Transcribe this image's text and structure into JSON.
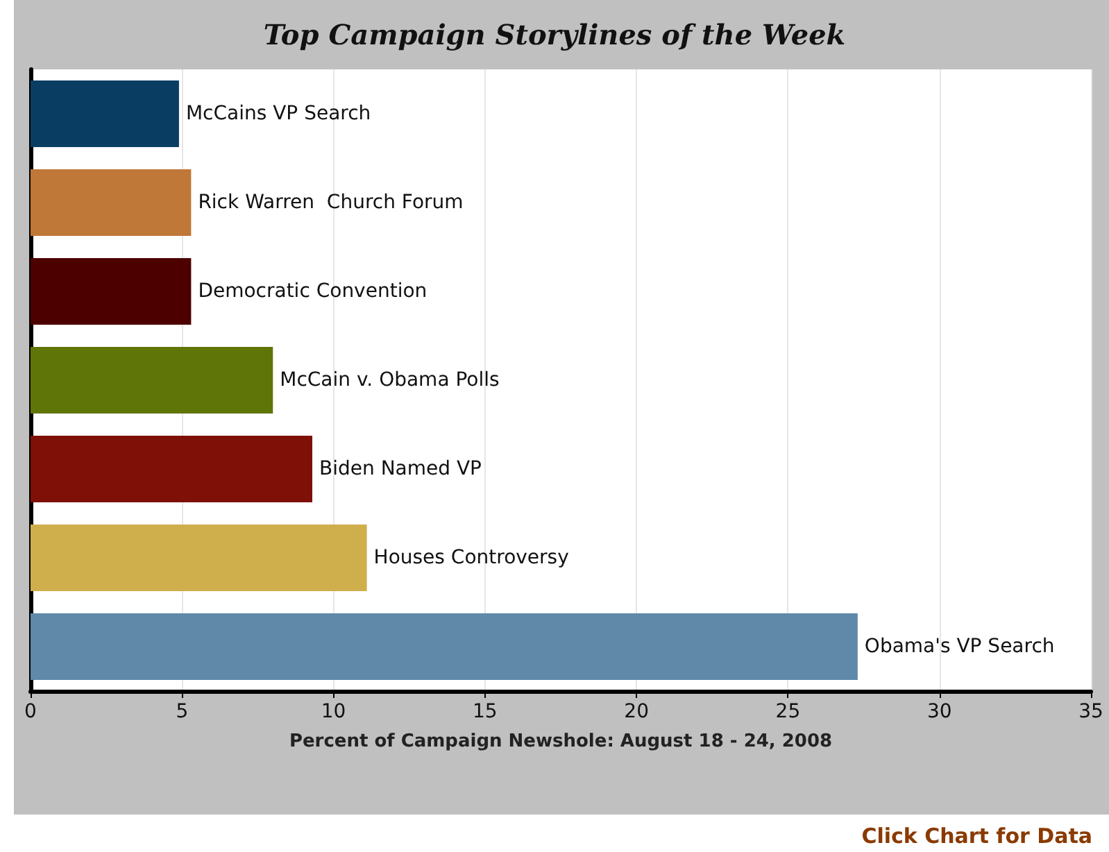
{
  "chart_data": {
    "type": "bar",
    "orientation": "horizontal",
    "title": "Top Campaign Storylines of the Week",
    "xlabel": "Percent of Campaign Newshole: August 18 - 24, 2008",
    "categories": [
      "McCains VP Search",
      "Rick Warren  Church Forum",
      "Democratic Convention",
      "McCain v. Obama Polls",
      "Biden Named VP",
      "Houses Controversy",
      "Obama's VP Search"
    ],
    "values": [
      4.9,
      5.3,
      5.3,
      8.0,
      9.3,
      11.1,
      27.3
    ],
    "colors": [
      "#0a3d62",
      "#c07838",
      "#4d0000",
      "#5f7508",
      "#7e1008",
      "#cfae4c",
      "#6088a8"
    ],
    "xlim": [
      0,
      35
    ],
    "xticks": [
      0,
      5,
      10,
      15,
      20,
      25,
      30,
      35
    ],
    "grid": "x",
    "annotations": [
      "Click Chart for Data"
    ]
  }
}
